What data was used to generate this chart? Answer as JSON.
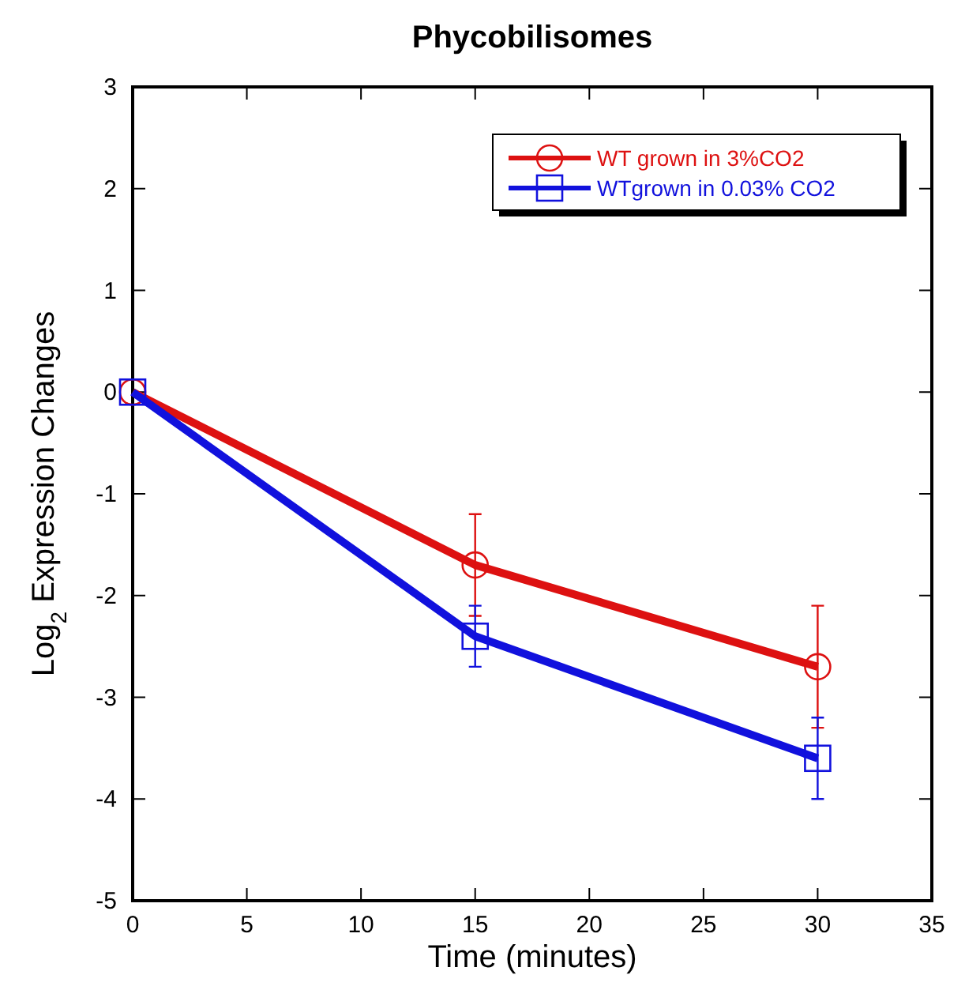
{
  "chart_data": {
    "type": "line",
    "title": "Phycobilisomes",
    "xlabel": "Time (minutes)",
    "ylabel": "Log$_{2}$ Expression Changes",
    "x": [
      0,
      15,
      30
    ],
    "series": [
      {
        "name": "WT grown in 3%CO2",
        "color": "#dd1111",
        "marker": "circle",
        "values": [
          0,
          -1.7,
          -2.7
        ],
        "errors": [
          null,
          0.5,
          0.6
        ]
      },
      {
        "name": "WTgrown in 0.03% CO2",
        "color": "#1111dd",
        "marker": "square",
        "values": [
          0,
          -2.4,
          -3.6
        ],
        "errors": [
          null,
          0.3,
          0.4
        ]
      }
    ],
    "xlim": [
      0,
      35
    ],
    "xticks": [
      0,
      5,
      10,
      15,
      20,
      25,
      30,
      35
    ],
    "ylim": [
      -5,
      3
    ],
    "yticks": [
      -5,
      -4,
      -3,
      -2,
      -1,
      0,
      1,
      2,
      3
    ],
    "grid": false,
    "legend": "top right",
    "line_style": "solid"
  }
}
